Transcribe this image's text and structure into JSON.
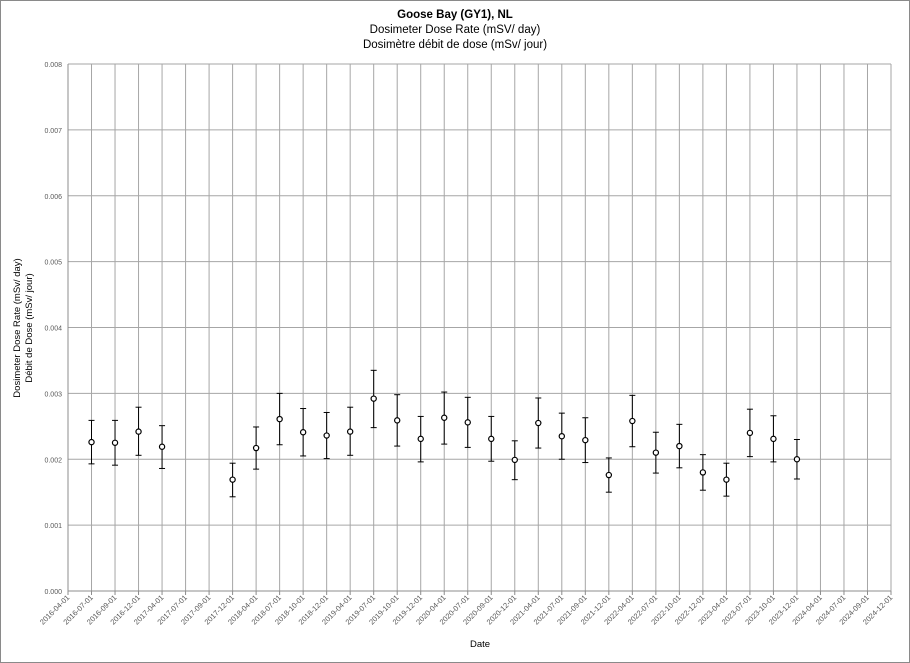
{
  "chart_data": {
    "type": "scatter",
    "title": "Goose Bay (GY1), NL",
    "subtitle_en": "Dosimeter Dose Rate (mSV/ day)",
    "subtitle_fr": "Dosimètre débit de dose (mSv/ jour)",
    "xlabel": "Date",
    "ylabel_en": "Dosimeter Dose Rate (mSv/ day)",
    "ylabel_fr": "Débit de Dose (mSv/ jour)",
    "ylim": [
      0,
      0.008
    ],
    "y_ticks": [
      "0.000",
      "0.001",
      "0.002",
      "0.003",
      "0.004",
      "0.005",
      "0.006",
      "0.007",
      "0.008"
    ],
    "x_ticks": [
      "2016-04-01",
      "2016-07-01",
      "2016-09-01",
      "2016-12-01",
      "2017-04-01",
      "2017-07-01",
      "2017-09-01",
      "2017-12-01",
      "2018-04-01",
      "2018-07-01",
      "2018-10-01",
      "2018-12-01",
      "2019-04-01",
      "2019-07-01",
      "2019-10-01",
      "2019-12-01",
      "2020-04-01",
      "2020-07-01",
      "2020-09-01",
      "2020-12-01",
      "2021-04-01",
      "2021-07-01",
      "2021-09-01",
      "2021-12-01",
      "2022-04-01",
      "2022-07-01",
      "2022-10-01",
      "2022-12-01",
      "2023-04-01",
      "2023-07-01",
      "2023-10-01",
      "2023-12-01",
      "2024-04-01",
      "2024-07-01",
      "2024-09-01",
      "2024-12-01"
    ],
    "grid": true,
    "points": [
      {
        "x": "2016-07-01",
        "y": 0.00226,
        "y_low": 0.00193,
        "y_high": 0.00259
      },
      {
        "x": "2016-09-01",
        "y": 0.00225,
        "y_low": 0.00191,
        "y_high": 0.00259
      },
      {
        "x": "2016-12-01",
        "y": 0.00242,
        "y_low": 0.00206,
        "y_high": 0.00279
      },
      {
        "x": "2017-04-01",
        "y": 0.00219,
        "y_low": 0.00186,
        "y_high": 0.00251
      },
      {
        "x": "2017-12-01",
        "y": 0.00169,
        "y_low": 0.00143,
        "y_high": 0.00194
      },
      {
        "x": "2018-04-01",
        "y": 0.00217,
        "y_low": 0.00185,
        "y_high": 0.00249
      },
      {
        "x": "2018-07-01",
        "y": 0.00261,
        "y_low": 0.00222,
        "y_high": 0.003
      },
      {
        "x": "2018-10-01",
        "y": 0.00241,
        "y_low": 0.00205,
        "y_high": 0.00277
      },
      {
        "x": "2018-12-01",
        "y": 0.00236,
        "y_low": 0.00201,
        "y_high": 0.00271
      },
      {
        "x": "2019-04-01",
        "y": 0.00242,
        "y_low": 0.00206,
        "y_high": 0.00279
      },
      {
        "x": "2019-07-01",
        "y": 0.00292,
        "y_low": 0.00248,
        "y_high": 0.00335
      },
      {
        "x": "2019-10-01",
        "y": 0.00259,
        "y_low": 0.0022,
        "y_high": 0.00298
      },
      {
        "x": "2019-12-01",
        "y": 0.00231,
        "y_low": 0.00196,
        "y_high": 0.00265
      },
      {
        "x": "2020-04-01",
        "y": 0.00263,
        "y_low": 0.00223,
        "y_high": 0.00302
      },
      {
        "x": "2020-07-01",
        "y": 0.00256,
        "y_low": 0.00218,
        "y_high": 0.00294
      },
      {
        "x": "2020-09-01",
        "y": 0.00231,
        "y_low": 0.00197,
        "y_high": 0.00265
      },
      {
        "x": "2020-12-01",
        "y": 0.00199,
        "y_low": 0.00169,
        "y_high": 0.00228
      },
      {
        "x": "2021-04-01",
        "y": 0.00255,
        "y_low": 0.00217,
        "y_high": 0.00293
      },
      {
        "x": "2021-07-01",
        "y": 0.00235,
        "y_low": 0.002,
        "y_high": 0.0027
      },
      {
        "x": "2021-09-01",
        "y": 0.00229,
        "y_low": 0.00195,
        "y_high": 0.00263
      },
      {
        "x": "2021-12-01",
        "y": 0.00176,
        "y_low": 0.0015,
        "y_high": 0.00202
      },
      {
        "x": "2022-04-01",
        "y": 0.00258,
        "y_low": 0.00219,
        "y_high": 0.00297
      },
      {
        "x": "2022-07-01",
        "y": 0.0021,
        "y_low": 0.00179,
        "y_high": 0.00241
      },
      {
        "x": "2022-10-01",
        "y": 0.0022,
        "y_low": 0.00187,
        "y_high": 0.00253
      },
      {
        "x": "2022-12-01",
        "y": 0.0018,
        "y_low": 0.00153,
        "y_high": 0.00207
      },
      {
        "x": "2023-04-01",
        "y": 0.00169,
        "y_low": 0.00144,
        "y_high": 0.00194
      },
      {
        "x": "2023-07-01",
        "y": 0.0024,
        "y_low": 0.00204,
        "y_high": 0.00276
      },
      {
        "x": "2023-10-01",
        "y": 0.00231,
        "y_low": 0.00196,
        "y_high": 0.00266
      },
      {
        "x": "2023-12-01",
        "y": 0.002,
        "y_low": 0.0017,
        "y_high": 0.0023
      }
    ],
    "colors": {
      "marker": "#000000",
      "grid": "#a6a6a6",
      "axis": "#8c8c8c",
      "text": "#595959"
    }
  }
}
